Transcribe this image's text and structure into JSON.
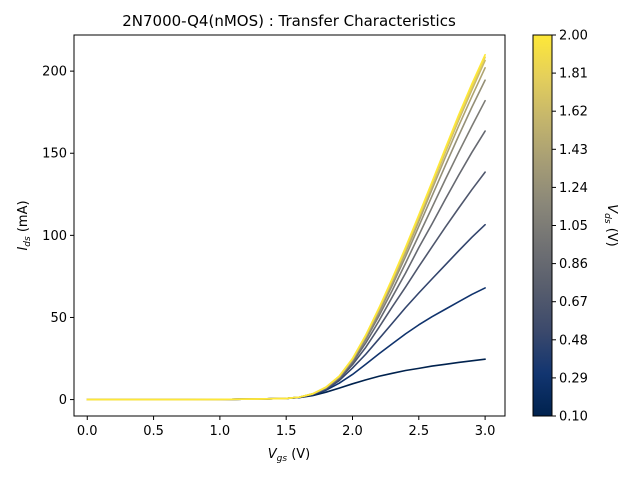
{
  "chart_data": {
    "type": "line",
    "title": "2N7000-Q4(nMOS) : Transfer Characteristics",
    "xlabel": {
      "main": "V",
      "sub": "gs",
      "unit": " (V)"
    },
    "ylabel": {
      "main": "I",
      "sub": "ds",
      "unit": " (mA)"
    },
    "xlim": [
      -0.1,
      3.15
    ],
    "ylim": [
      -10,
      222
    ],
    "xticks": [
      "0.0",
      "0.5",
      "1.0",
      "1.5",
      "2.0",
      "2.5",
      "3.0"
    ],
    "yticks": [
      "0",
      "50",
      "100",
      "150",
      "200"
    ],
    "colorbar": {
      "label": {
        "main": "V",
        "sub": "ds",
        "unit": " (V)"
      },
      "range": [
        0.1,
        2.0
      ],
      "ticks": [
        "0.10",
        "0.29",
        "0.48",
        "0.67",
        "0.86",
        "1.05",
        "1.24",
        "1.43",
        "1.62",
        "1.81",
        "2.00"
      ],
      "colormap": "cividis",
      "stops": [
        "#00224e",
        "#123570",
        "#3b496c",
        "#575d6d",
        "#707173",
        "#8a8779",
        "#a69d75",
        "#c4b56c",
        "#e4cf5b",
        "#fee838"
      ]
    },
    "x": [
      0.0,
      0.25,
      0.5,
      0.75,
      1.0,
      1.25,
      1.5,
      1.6,
      1.7,
      1.8,
      1.9,
      2.0,
      2.1,
      2.2,
      2.3,
      2.4,
      2.5,
      2.6,
      2.7,
      2.8,
      2.9,
      3.0
    ],
    "series": [
      {
        "vds": 0.1,
        "values": [
          0.0,
          0.0,
          0.0,
          0.0,
          0.1,
          0.3,
          0.7,
          1.2,
          2.4,
          4.5,
          7.0,
          9.6,
          12.0,
          14.2,
          16.0,
          17.7,
          19.0,
          20.4,
          21.5,
          22.6,
          23.6,
          24.6
        ]
      },
      {
        "vds": 0.29,
        "values": [
          0.0,
          0.0,
          0.0,
          0.0,
          0.1,
          0.3,
          0.7,
          1.3,
          2.8,
          5.7,
          10.0,
          15.3,
          21.5,
          27.9,
          34.0,
          40.0,
          45.5,
          50.5,
          55.0,
          59.5,
          64.0,
          68.0
        ]
      },
      {
        "vds": 0.48,
        "values": [
          0.0,
          0.0,
          0.0,
          0.0,
          0.1,
          0.3,
          0.7,
          1.4,
          3.0,
          6.2,
          11.6,
          19.2,
          27.6,
          37.0,
          46.5,
          56.0,
          64.9,
          73.5,
          82.0,
          90.5,
          98.8,
          106.5
        ]
      },
      {
        "vds": 0.67,
        "values": [
          0.0,
          0.0,
          0.0,
          0.0,
          0.1,
          0.3,
          0.7,
          1.4,
          3.2,
          6.6,
          12.4,
          21.2,
          31.8,
          44.0,
          56.5,
          68.5,
          81.0,
          93.0,
          105.0,
          116.5,
          127.8,
          138.5
        ]
      },
      {
        "vds": 0.86,
        "values": [
          0.0,
          0.0,
          0.0,
          0.0,
          0.1,
          0.3,
          0.7,
          1.5,
          3.3,
          6.9,
          13.0,
          22.5,
          34.5,
          48.0,
          62.5,
          77.0,
          92.5,
          107.0,
          122.0,
          136.5,
          150.5,
          163.5
        ]
      },
      {
        "vds": 1.05,
        "values": [
          0.0,
          0.0,
          0.0,
          0.0,
          0.1,
          0.3,
          0.7,
          1.5,
          3.4,
          7.1,
          13.4,
          23.3,
          36.5,
          51.0,
          66.5,
          83.0,
          100.0,
          117.0,
          134.0,
          150.5,
          166.5,
          182.0
        ]
      },
      {
        "vds": 1.24,
        "values": [
          0.0,
          0.0,
          0.0,
          0.0,
          0.1,
          0.3,
          0.7,
          1.5,
          3.5,
          7.3,
          13.7,
          23.9,
          37.5,
          53.0,
          69.5,
          87.0,
          105.5,
          124.0,
          142.5,
          160.5,
          178.0,
          194.5
        ]
      },
      {
        "vds": 1.43,
        "values": [
          0.0,
          0.0,
          0.0,
          0.0,
          0.1,
          0.3,
          0.7,
          1.5,
          3.5,
          7.4,
          13.9,
          24.3,
          38.2,
          54.3,
          71.5,
          89.5,
          108.5,
          128.0,
          147.5,
          166.5,
          184.5,
          202.0
        ]
      },
      {
        "vds": 1.62,
        "values": [
          0.0,
          0.0,
          0.0,
          0.0,
          0.1,
          0.3,
          0.7,
          1.5,
          3.5,
          7.5,
          14.1,
          24.6,
          38.7,
          55.0,
          72.5,
          91.0,
          110.5,
          130.5,
          150.5,
          170.0,
          188.5,
          206.5
        ]
      },
      {
        "vds": 1.81,
        "values": [
          0.0,
          0.0,
          0.0,
          0.0,
          0.1,
          0.3,
          0.7,
          1.5,
          3.5,
          7.5,
          14.2,
          24.8,
          39.0,
          55.5,
          73.2,
          92.0,
          111.5,
          131.5,
          151.8,
          171.5,
          190.5,
          208.5
        ]
      },
      {
        "vds": 2.0,
        "values": [
          0.0,
          0.0,
          0.0,
          0.0,
          0.1,
          0.3,
          0.7,
          1.5,
          3.5,
          7.6,
          14.3,
          25.0,
          39.3,
          55.9,
          73.8,
          92.7,
          112.4,
          132.6,
          153.0,
          173.2,
          192.2,
          210.0
        ]
      }
    ]
  }
}
